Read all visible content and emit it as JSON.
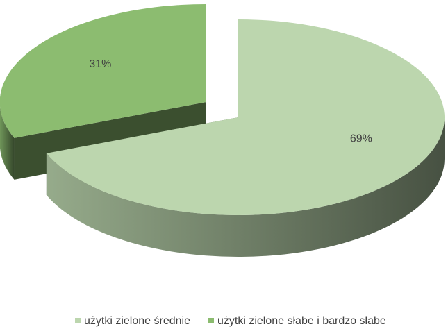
{
  "chart_data": {
    "type": "pie",
    "three_d": true,
    "exploded": true,
    "categories": [
      "użytki zielone średnie",
      "użytki zielone słabe i bardzo słabe"
    ],
    "values": [
      69,
      31
    ],
    "value_labels": [
      "69%",
      "31%"
    ],
    "colors": [
      "#bcd6ae",
      "#8cbc70"
    ],
    "legend": "bottom"
  }
}
